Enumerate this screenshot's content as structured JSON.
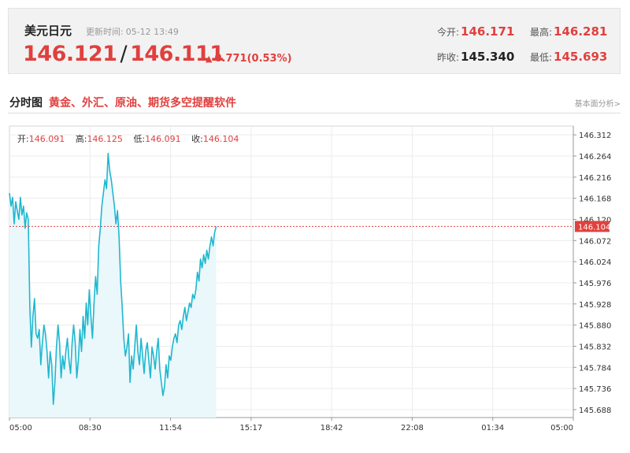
{
  "quote": {
    "name": "美元日元",
    "update_label": "更新时间:",
    "update_time": "05-12 13:49",
    "bid": "146.121",
    "separator": "/",
    "ask": "146.111",
    "change": "0.771(0.53%)",
    "open_label": "今开:",
    "open": "146.171",
    "high_label": "最高:",
    "high": "146.281",
    "prev_close_label": "昨收:",
    "prev_close": "145.340",
    "low_label": "最低:",
    "low": "145.693",
    "up_color": "#e0403e"
  },
  "section": {
    "title": "分时图",
    "link_text": "黄金、外汇、原油、期货多空提醒软件",
    "more_text": "基本面分析>"
  },
  "ohlc": {
    "open_label": "开:",
    "open": "146.091",
    "high_label": "高:",
    "high": "146.125",
    "low_label": "低:",
    "low": "146.091",
    "close_label": "收:",
    "close": "146.104"
  },
  "chart_data": {
    "type": "area",
    "title": "",
    "xlabel": "",
    "ylabel": "",
    "x_tick_labels": [
      "05:00",
      "08:30",
      "11:54",
      "15:17",
      "18:42",
      "22:08",
      "01:34",
      "05:00"
    ],
    "y_tick_labels": [
      "146.312",
      "146.264",
      "146.216",
      "146.168",
      "146.120",
      "146.072",
      "146.024",
      "145.976",
      "145.928",
      "145.880",
      "145.832",
      "145.784",
      "145.736",
      "145.688"
    ],
    "ylim": [
      145.67,
      146.332
    ],
    "x_slots": 1440,
    "current_price_label": "146.104",
    "current_price": 146.104,
    "line_color": "#1fb8cf",
    "fill_color": "#eaf7fb",
    "series": [
      {
        "x": [
          0,
          4,
          8,
          12,
          16,
          20,
          24,
          28,
          32,
          36,
          40,
          44,
          48,
          52,
          56,
          60,
          64,
          68,
          72,
          76,
          80,
          84,
          88,
          92,
          96,
          100,
          104,
          108,
          112,
          116,
          120,
          124,
          128,
          132,
          136,
          140,
          144,
          148,
          152,
          156,
          160,
          164,
          168,
          172,
          176,
          180,
          184,
          188,
          192,
          196,
          200,
          204,
          208,
          212,
          216,
          220,
          224,
          228,
          232,
          236,
          240,
          244,
          248,
          252,
          256,
          260,
          264,
          268,
          272,
          276,
          280,
          284,
          288,
          292,
          296,
          300,
          304,
          308,
          312,
          316,
          320,
          324,
          328,
          332,
          336,
          340,
          344,
          348,
          352,
          356,
          360,
          364,
          368,
          372,
          376,
          380,
          384,
          388,
          392,
          396,
          400,
          404,
          408,
          412,
          416,
          420,
          424,
          428,
          432,
          436,
          440,
          444,
          448,
          452,
          456,
          460,
          464,
          468,
          472,
          476,
          480,
          484,
          488,
          492,
          496,
          500,
          504,
          508,
          512,
          516,
          520,
          524,
          528
        ],
        "values": [
          146.18,
          146.15,
          146.17,
          146.11,
          146.16,
          146.14,
          146.12,
          146.17,
          146.13,
          146.15,
          146.1,
          146.135,
          146.12,
          145.92,
          145.83,
          145.9,
          145.94,
          145.86,
          145.85,
          145.87,
          145.79,
          145.84,
          145.88,
          145.86,
          145.82,
          145.76,
          145.82,
          145.79,
          145.7,
          145.75,
          145.83,
          145.88,
          145.84,
          145.76,
          145.81,
          145.78,
          145.82,
          145.85,
          145.8,
          145.77,
          145.84,
          145.88,
          145.84,
          145.76,
          145.8,
          145.87,
          145.82,
          145.9,
          145.85,
          145.93,
          145.88,
          145.96,
          145.9,
          145.85,
          145.93,
          145.99,
          145.95,
          146.06,
          146.1,
          146.15,
          146.18,
          146.21,
          146.19,
          146.27,
          146.23,
          146.21,
          146.18,
          146.15,
          146.11,
          146.14,
          146.08,
          145.98,
          145.92,
          145.85,
          145.81,
          145.83,
          145.86,
          145.75,
          145.81,
          145.78,
          145.83,
          145.88,
          145.82,
          145.79,
          145.85,
          145.81,
          145.77,
          145.82,
          145.84,
          145.8,
          145.76,
          145.83,
          145.81,
          145.78,
          145.82,
          145.85,
          145.78,
          145.75,
          145.72,
          145.74,
          145.79,
          145.76,
          145.81,
          145.8,
          145.83,
          145.85,
          145.86,
          145.84,
          145.88,
          145.89,
          145.87,
          145.9,
          145.92,
          145.89,
          145.91,
          145.93,
          145.92,
          145.95,
          145.94,
          145.96,
          146.0,
          145.98,
          146.03,
          146.01,
          146.04,
          146.02,
          146.05,
          146.03,
          146.06,
          146.08,
          146.06,
          146.09,
          146.104
        ]
      }
    ]
  }
}
